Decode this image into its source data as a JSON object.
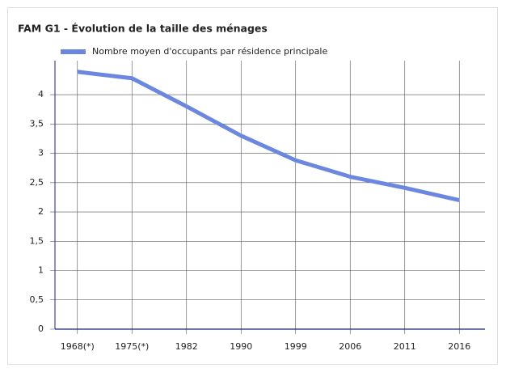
{
  "chart_data": {
    "type": "line",
    "title": "FAM G1 - Évolution de la taille des ménages",
    "categories": [
      "1968(*)",
      "1975(*)",
      "1982",
      "1990",
      "1999",
      "2006",
      "2011",
      "2016"
    ],
    "series": [
      {
        "name": "Nombre moyen d'occupants par résidence principale",
        "color": "#6b87e0",
        "values": [
          4.39,
          4.28,
          3.8,
          3.3,
          2.88,
          2.6,
          2.41,
          2.2
        ]
      }
    ],
    "ylim": [
      0,
      4.58
    ],
    "yticks": [
      0,
      {
        "value": 0.5,
        "label": "0,5"
      },
      1,
      {
        "value": 1.5,
        "label": "1,5"
      },
      2,
      {
        "value": 2.5,
        "label": "2,5"
      },
      3,
      {
        "value": 3.5,
        "label": "3,5"
      },
      4
    ],
    "grid": true,
    "legend": "top"
  }
}
